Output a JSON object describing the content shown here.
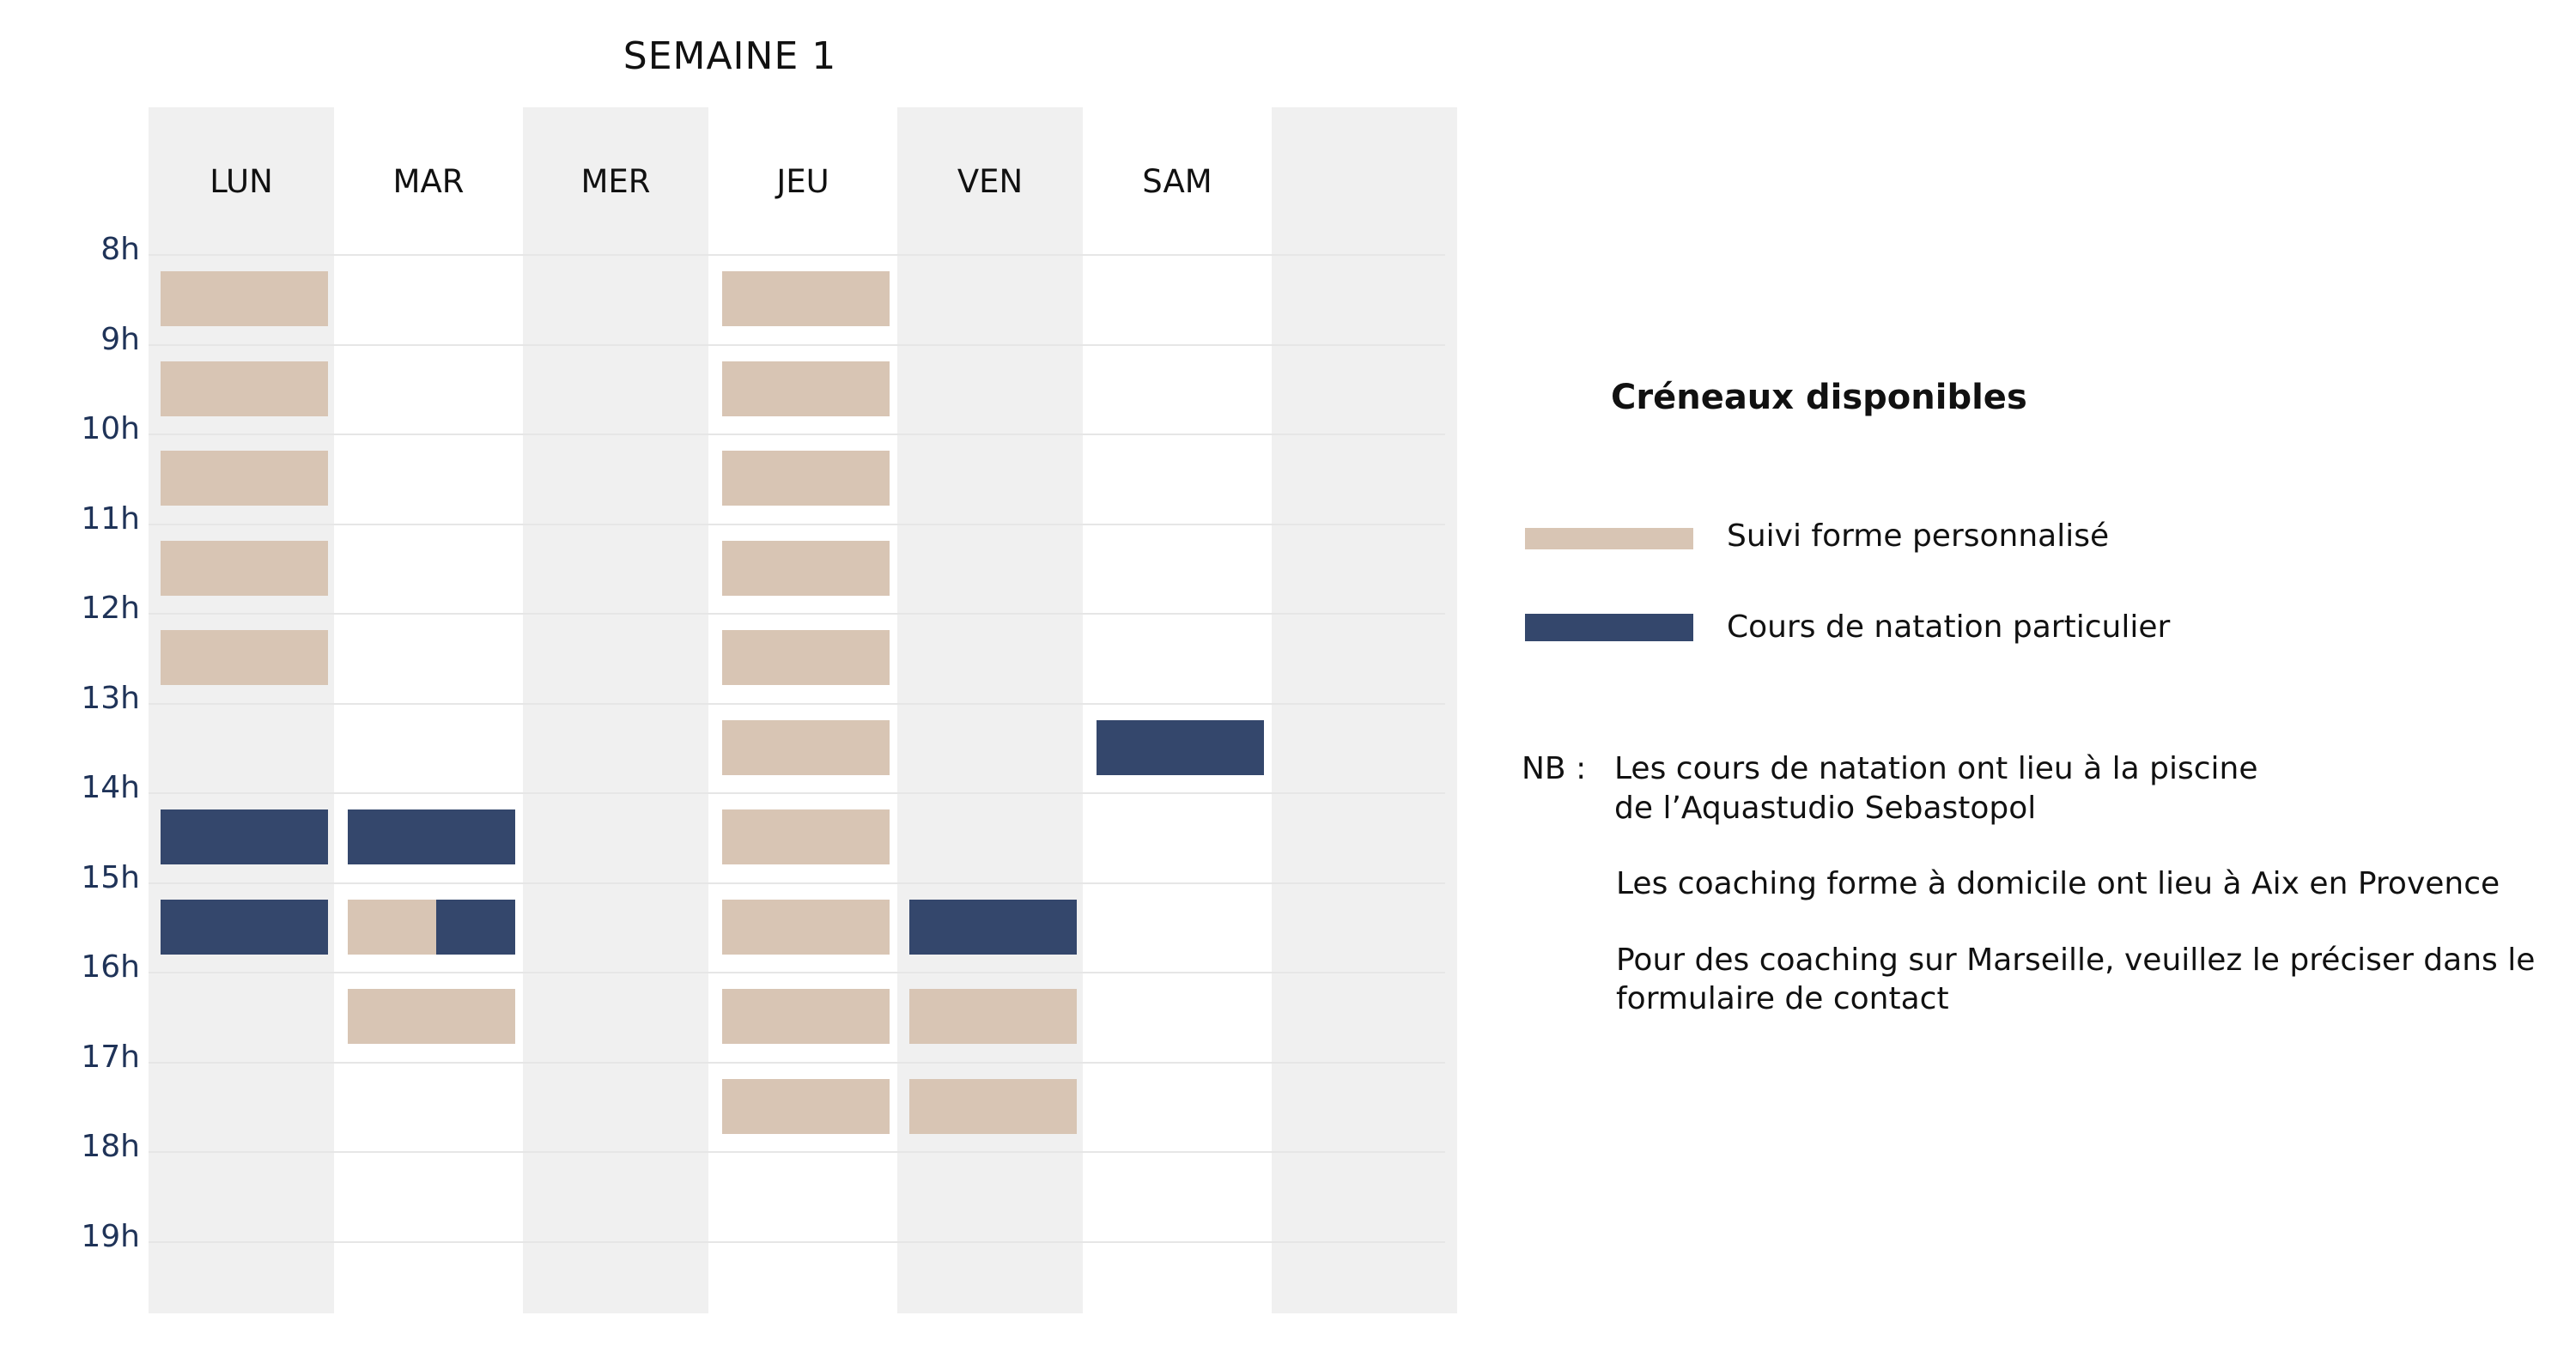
{
  "title": "SEMAINE 1",
  "days": [
    "LUN",
    "MAR",
    "MER",
    "JEU",
    "VEN",
    "SAM",
    ""
  ],
  "hours": [
    "8h",
    "9h",
    "10h",
    "11h",
    "12h",
    "13h",
    "14h",
    "15h",
    "16h",
    "17h",
    "18h",
    "19h"
  ],
  "colors": {
    "suivi": "#d8c5b4",
    "cours": "#34476c",
    "column_shade": "#f0f0f0",
    "hour_label": "#1f3358"
  },
  "slots": [
    {
      "day": "LUN",
      "hour": 8,
      "type": "suivi"
    },
    {
      "day": "LUN",
      "hour": 9,
      "type": "suivi"
    },
    {
      "day": "LUN",
      "hour": 10,
      "type": "suivi"
    },
    {
      "day": "LUN",
      "hour": 11,
      "type": "suivi"
    },
    {
      "day": "LUN",
      "hour": 12,
      "type": "suivi"
    },
    {
      "day": "LUN",
      "hour": 14,
      "type": "cours"
    },
    {
      "day": "LUN",
      "hour": 15,
      "type": "cours"
    },
    {
      "day": "MAR",
      "hour": 14,
      "type": "cours"
    },
    {
      "day": "MAR",
      "hour": 15,
      "type": "split"
    },
    {
      "day": "MAR",
      "hour": 16,
      "type": "suivi"
    },
    {
      "day": "JEU",
      "hour": 8,
      "type": "suivi"
    },
    {
      "day": "JEU",
      "hour": 9,
      "type": "suivi"
    },
    {
      "day": "JEU",
      "hour": 10,
      "type": "suivi"
    },
    {
      "day": "JEU",
      "hour": 11,
      "type": "suivi"
    },
    {
      "day": "JEU",
      "hour": 12,
      "type": "suivi"
    },
    {
      "day": "JEU",
      "hour": 13,
      "type": "suivi"
    },
    {
      "day": "JEU",
      "hour": 14,
      "type": "suivi"
    },
    {
      "day": "JEU",
      "hour": 15,
      "type": "suivi"
    },
    {
      "day": "JEU",
      "hour": 16,
      "type": "suivi"
    },
    {
      "day": "JEU",
      "hour": 17,
      "type": "suivi"
    },
    {
      "day": "VEN",
      "hour": 15,
      "type": "cours"
    },
    {
      "day": "VEN",
      "hour": 16,
      "type": "suivi"
    },
    {
      "day": "VEN",
      "hour": 17,
      "type": "suivi"
    },
    {
      "day": "SAM",
      "hour": 13,
      "type": "cours"
    }
  ],
  "legend": {
    "title": "Créneaux disponibles",
    "items": [
      {
        "type": "suivi",
        "label": "Suivi forme personnalisé"
      },
      {
        "type": "cours",
        "label": "Cours de natation particulier"
      }
    ]
  },
  "notes": {
    "prefix": "NB :",
    "note1_line1": "Les cours de natation ont lieu à la piscine",
    "note1_line2": "de l’Aquastudio Sebastopol",
    "note2": "Les coaching forme à domicile ont lieu à Aix en Provence",
    "note3_line1": "Pour des coaching sur Marseille, veuillez le préciser dans le",
    "note3_line2": "formulaire de contact"
  }
}
